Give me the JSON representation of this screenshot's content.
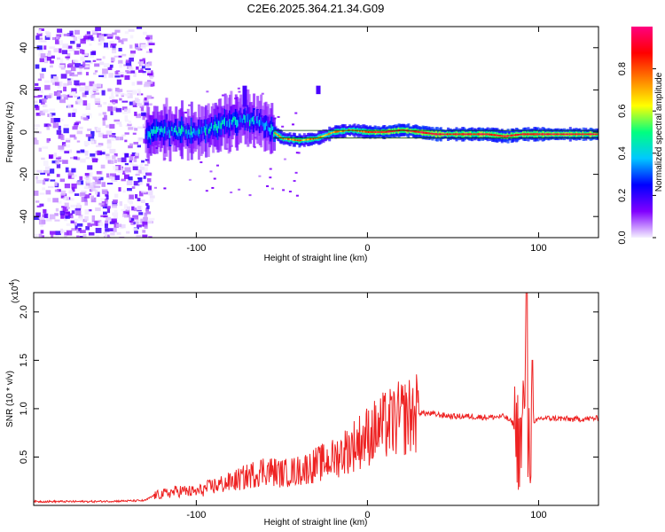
{
  "title": "C2E6.2025.364.21.34.G09",
  "chart_data": [
    {
      "type": "heatmap",
      "xlabel": "Height of straight line (km)",
      "ylabel": "Frequency (Hz)",
      "xlim": [
        -195,
        135
      ],
      "ylim": [
        -50,
        50
      ],
      "xticks": [
        -100,
        0,
        100
      ],
      "yticks": [
        -40,
        -20,
        0,
        20,
        40
      ],
      "colorbar": {
        "label": "Normalized spectral amplitude",
        "range": [
          0,
          1
        ],
        "ticks": [
          "0.0",
          "0.2",
          "0.4",
          "0.6",
          "0.8"
        ],
        "colors": [
          "#f5f0ff",
          "#8000ff",
          "#0000ff",
          "#00c8ff",
          "#00ff80",
          "#ffff00",
          "#ff8000",
          "#ff0000",
          "#ff0080"
        ]
      },
      "ridge": {
        "x": [
          -130,
          -120,
          -110,
          -100,
          -90,
          -80,
          -70,
          -60,
          -50,
          -40,
          -30,
          -20,
          -10,
          0,
          10,
          20,
          30,
          40,
          50,
          60,
          70,
          80,
          90,
          100,
          110,
          120,
          135
        ],
        "freq": [
          -1,
          1,
          0,
          0,
          2,
          5,
          6,
          3,
          -3,
          -4,
          -3,
          0,
          1,
          0,
          0,
          1,
          0,
          -1,
          -1,
          -1,
          -1,
          -2,
          -1,
          -1,
          -1,
          -1,
          -1
        ]
      }
    },
    {
      "type": "line",
      "xlabel": "Height of straight line (km)",
      "ylabel": "SNR (10 * v/v)",
      "multiplier": "(x10",
      "multiplier_exp": "4",
      "xlim": [
        -195,
        135
      ],
      "ylim": [
        0,
        2.2
      ],
      "xticks": [
        -100,
        0,
        100
      ],
      "yticks": [
        0.5,
        1.0,
        1.5,
        2.0
      ],
      "series": [
        {
          "name": "SNR",
          "color": "#ee2222",
          "x": [
            -195,
            -160,
            -130,
            -125,
            -110,
            -100,
            -90,
            -80,
            -70,
            -60,
            -50,
            -40,
            -30,
            -20,
            -10,
            0,
            10,
            20,
            30,
            40,
            50,
            60,
            70,
            80,
            85,
            88,
            90,
            92,
            94,
            96,
            100,
            110,
            120,
            135
          ],
          "y": [
            0.04,
            0.04,
            0.05,
            0.1,
            0.15,
            0.14,
            0.2,
            0.24,
            0.3,
            0.37,
            0.33,
            0.36,
            0.42,
            0.48,
            0.6,
            0.72,
            0.82,
            0.9,
            0.96,
            0.94,
            0.92,
            0.92,
            0.91,
            0.92,
            0.85,
            0.7,
            0.6,
            1.3,
            0.6,
            0.8,
            0.9,
            0.9,
            0.89,
            0.9
          ]
        }
      ]
    }
  ]
}
